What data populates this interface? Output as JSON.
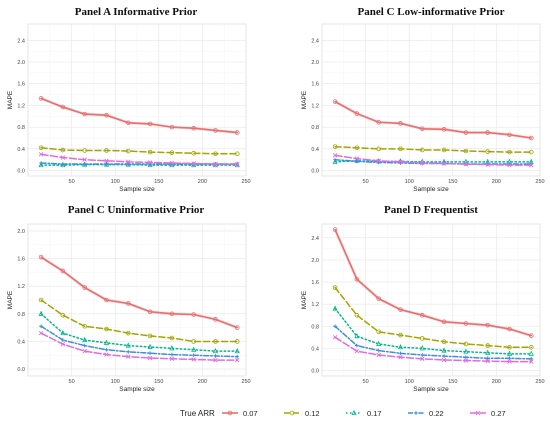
{
  "colors": [
    "#e8706b",
    "#a3a500",
    "#00b88a",
    "#3d8ee0",
    "#e16be0"
  ],
  "chart_data": [
    {
      "type": "line",
      "title": "Panel A Informative Prior",
      "xlabel": "Sample size",
      "ylabel": "MAPE",
      "xlim": [
        0,
        250
      ],
      "ylim": [
        -0.1,
        2.7
      ],
      "xticks": [
        50,
        100,
        150,
        200,
        250
      ],
      "yticks": [
        0.0,
        0.4,
        0.8,
        1.2,
        1.6,
        2.0,
        2.4
      ],
      "grid": true,
      "x": [
        15,
        40,
        65,
        90,
        115,
        140,
        165,
        190,
        215,
        240
      ],
      "series": [
        {
          "name": "0.07",
          "values": [
            1.33,
            1.17,
            1.04,
            1.02,
            0.88,
            0.86,
            0.8,
            0.78,
            0.74,
            0.7
          ]
        },
        {
          "name": "0.12",
          "values": [
            0.42,
            0.38,
            0.37,
            0.37,
            0.36,
            0.34,
            0.33,
            0.32,
            0.31,
            0.31
          ]
        },
        {
          "name": "0.17",
          "values": [
            0.1,
            0.1,
            0.11,
            0.11,
            0.11,
            0.1,
            0.1,
            0.1,
            0.1,
            0.1
          ]
        },
        {
          "name": "0.22",
          "values": [
            0.14,
            0.12,
            0.12,
            0.12,
            0.12,
            0.12,
            0.12,
            0.12,
            0.12,
            0.12
          ]
        },
        {
          "name": "0.27",
          "values": [
            0.3,
            0.24,
            0.2,
            0.18,
            0.16,
            0.15,
            0.14,
            0.13,
            0.12,
            0.12
          ]
        }
      ]
    },
    {
      "type": "line",
      "title": "Panel C Low-informative Prior",
      "xlabel": "Sample size",
      "ylabel": "MAPE",
      "xlim": [
        0,
        250
      ],
      "ylim": [
        -0.1,
        2.7
      ],
      "xticks": [
        50,
        100,
        150,
        200,
        250
      ],
      "yticks": [
        0.0,
        0.4,
        0.8,
        1.2,
        1.6,
        2.0,
        2.4
      ],
      "grid": true,
      "x": [
        15,
        40,
        65,
        90,
        115,
        140,
        165,
        190,
        215,
        240
      ],
      "series": [
        {
          "name": "0.07",
          "values": [
            1.27,
            1.05,
            0.89,
            0.87,
            0.77,
            0.76,
            0.7,
            0.7,
            0.66,
            0.6
          ]
        },
        {
          "name": "0.12",
          "values": [
            0.44,
            0.42,
            0.4,
            0.4,
            0.38,
            0.38,
            0.36,
            0.35,
            0.34,
            0.34
          ]
        },
        {
          "name": "0.17",
          "values": [
            0.16,
            0.18,
            0.17,
            0.17,
            0.16,
            0.16,
            0.16,
            0.16,
            0.16,
            0.16
          ]
        },
        {
          "name": "0.22",
          "values": [
            0.2,
            0.17,
            0.15,
            0.14,
            0.13,
            0.13,
            0.12,
            0.12,
            0.12,
            0.12
          ]
        },
        {
          "name": "0.27",
          "values": [
            0.28,
            0.22,
            0.18,
            0.16,
            0.14,
            0.13,
            0.12,
            0.11,
            0.1,
            0.1
          ]
        }
      ]
    },
    {
      "type": "line",
      "title": "Panel C Uninformative Prior",
      "xlabel": "Sample size",
      "ylabel": "MAPE",
      "xlim": [
        0,
        250
      ],
      "ylim": [
        -0.1,
        2.1
      ],
      "xticks": [
        50,
        100,
        150,
        200,
        250
      ],
      "yticks": [
        0.0,
        0.4,
        0.8,
        1.2,
        1.6,
        2.0
      ],
      "grid": true,
      "x": [
        15,
        40,
        65,
        90,
        115,
        140,
        165,
        190,
        215,
        240
      ],
      "series": [
        {
          "name": "0.07",
          "values": [
            1.62,
            1.42,
            1.18,
            1.0,
            0.95,
            0.83,
            0.8,
            0.79,
            0.72,
            0.6
          ]
        },
        {
          "name": "0.12",
          "values": [
            1.0,
            0.78,
            0.62,
            0.58,
            0.52,
            0.48,
            0.45,
            0.4,
            0.4,
            0.4
          ]
        },
        {
          "name": "0.17",
          "values": [
            0.8,
            0.52,
            0.42,
            0.38,
            0.34,
            0.32,
            0.3,
            0.28,
            0.26,
            0.26
          ]
        },
        {
          "name": "0.22",
          "values": [
            0.62,
            0.42,
            0.34,
            0.28,
            0.25,
            0.23,
            0.21,
            0.2,
            0.19,
            0.18
          ]
        },
        {
          "name": "0.27",
          "values": [
            0.52,
            0.36,
            0.26,
            0.21,
            0.18,
            0.16,
            0.15,
            0.14,
            0.13,
            0.13
          ]
        }
      ]
    },
    {
      "type": "line",
      "title": "Panel D Frequentist",
      "xlabel": "Sample size",
      "ylabel": "MAPE",
      "xlim": [
        0,
        250
      ],
      "ylim": [
        -0.1,
        2.65
      ],
      "xticks": [
        50,
        100,
        150,
        200,
        250
      ],
      "yticks": [
        0.0,
        0.4,
        0.8,
        1.2,
        1.6,
        2.0,
        2.4
      ],
      "grid": true,
      "x": [
        15,
        40,
        65,
        90,
        115,
        140,
        165,
        190,
        215,
        240
      ],
      "series": [
        {
          "name": "0.07",
          "values": [
            2.55,
            1.65,
            1.3,
            1.1,
            1.0,
            0.88,
            0.85,
            0.82,
            0.75,
            0.63
          ]
        },
        {
          "name": "0.12",
          "values": [
            1.5,
            1.0,
            0.7,
            0.64,
            0.58,
            0.52,
            0.48,
            0.45,
            0.42,
            0.42
          ]
        },
        {
          "name": "0.17",
          "values": [
            1.12,
            0.62,
            0.48,
            0.42,
            0.4,
            0.36,
            0.34,
            0.32,
            0.3,
            0.3
          ]
        },
        {
          "name": "0.22",
          "values": [
            0.8,
            0.45,
            0.36,
            0.31,
            0.28,
            0.26,
            0.24,
            0.22,
            0.22,
            0.21
          ]
        },
        {
          "name": "0.27",
          "values": [
            0.6,
            0.35,
            0.28,
            0.24,
            0.21,
            0.19,
            0.18,
            0.17,
            0.16,
            0.16
          ]
        }
      ]
    }
  ],
  "legend": {
    "title": "True ARR",
    "placement": "bottom",
    "items": [
      "0.07",
      "0.12",
      "0.17",
      "0.22",
      "0.27"
    ]
  }
}
